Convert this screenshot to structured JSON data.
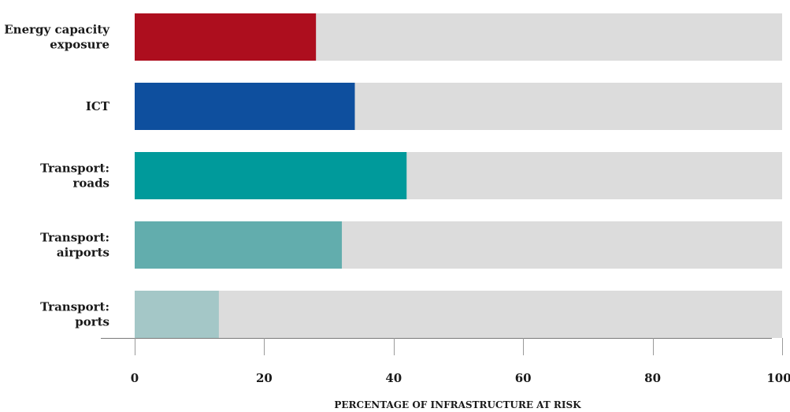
{
  "chart_data": {
    "type": "bar",
    "orientation": "horizontal",
    "categories": [
      [
        "Energy capacity",
        "exposure"
      ],
      [
        "ICT"
      ],
      [
        "Transport:",
        "roads"
      ],
      [
        "Transport:",
        "airports"
      ],
      [
        "Transport:",
        "ports"
      ]
    ],
    "values": [
      28,
      34,
      42,
      32,
      13
    ],
    "colors": [
      "#ad0e1e",
      "#0e4f9e",
      "#009a9b",
      "#62adad",
      "#a4c7c7"
    ],
    "track_color": "#dcdcdc",
    "xlim": [
      0,
      100
    ],
    "xticks": [
      0,
      20,
      40,
      60,
      80,
      100
    ],
    "xlabel": "PERCENTAGE OF INFRASTRUCTURE AT RISK",
    "ylabel": "",
    "title": "",
    "grid": false,
    "legend": false
  }
}
